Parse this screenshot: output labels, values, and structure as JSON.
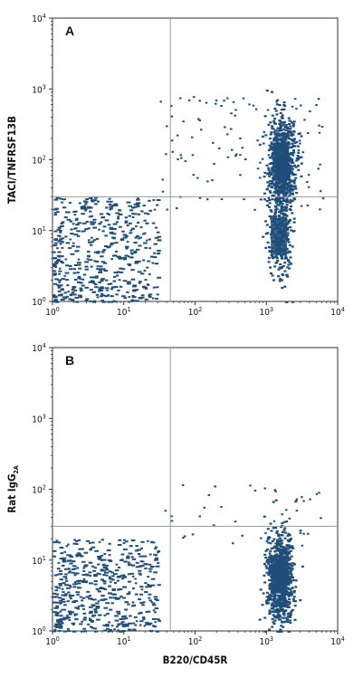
{
  "chart_data": [
    {
      "type": "scatter",
      "panel_label": "A",
      "xlabel": "",
      "ylabel": "TACI/TNFRSF13B",
      "xscale": "log",
      "yscale": "log",
      "xlim": [
        1,
        10000
      ],
      "ylim": [
        1,
        10000
      ],
      "x_ticks": [
        "10^0",
        "10^1",
        "10^2",
        "10^3",
        "10^4"
      ],
      "y_ticks": [
        "10^0",
        "10^1",
        "10^2",
        "10^3",
        "10^4"
      ],
      "quadrant_gate": {
        "x": 45,
        "y": 30
      },
      "clusters": [
        {
          "name": "double-negative",
          "x_range": [
            1,
            30
          ],
          "y_range": [
            1,
            30
          ],
          "density": "high"
        },
        {
          "name": "B220+ TACI+",
          "x_center": 1600,
          "y_center": 90,
          "density": "very high"
        },
        {
          "name": "B220+ TACI low",
          "x_center": 1500,
          "y_center": 8,
          "density": "medium"
        }
      ],
      "grid": false,
      "color": "#1f4e79"
    },
    {
      "type": "scatter",
      "panel_label": "B",
      "xlabel": "B220/CD45R",
      "ylabel": "Rat IgG",
      "ylabel_subscript": "2A",
      "xscale": "log",
      "yscale": "log",
      "xlim": [
        1,
        10000
      ],
      "ylim": [
        1,
        10000
      ],
      "x_ticks": [
        "10^0",
        "10^1",
        "10^2",
        "10^3",
        "10^4"
      ],
      "y_ticks": [
        "10^0",
        "10^1",
        "10^2",
        "10^3",
        "10^4"
      ],
      "quadrant_gate": {
        "x": 45,
        "y": 30
      },
      "clusters": [
        {
          "name": "double-negative",
          "x_range": [
            1,
            30
          ],
          "y_range": [
            1,
            20
          ],
          "density": "high"
        },
        {
          "name": "B220+ isotype",
          "x_center": 1500,
          "y_center": 6,
          "density": "very high"
        }
      ],
      "grid": false,
      "color": "#1f4e79"
    }
  ]
}
